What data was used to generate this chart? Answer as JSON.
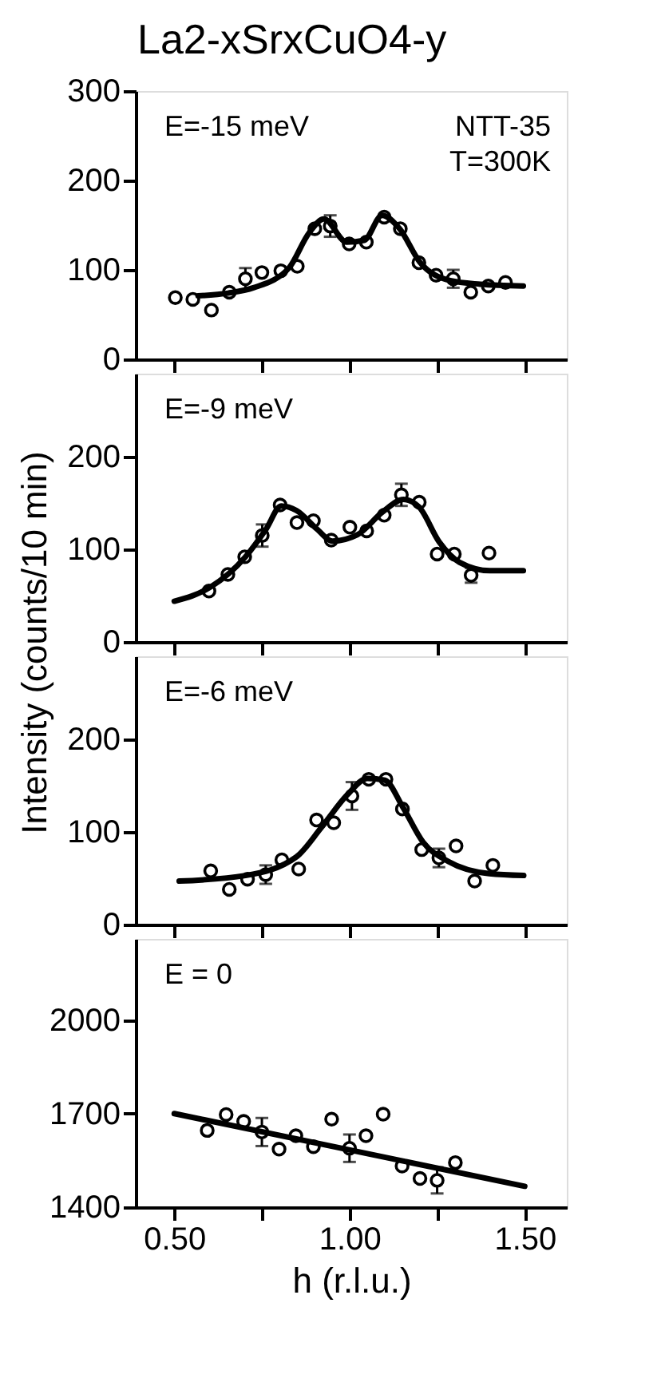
{
  "chart_data": [
    {
      "type": "scatter",
      "title": "La2-xSrxCuO4-y",
      "annotations": [
        "E=-15 meV",
        "NTT-35",
        "T=300K"
      ],
      "xlim": [
        0.39,
        1.62
      ],
      "ylim": [
        0,
        300
      ],
      "yticks": [
        0,
        100,
        200,
        300
      ],
      "xticks": [
        0.5,
        0.75,
        1.0,
        1.25,
        1.5
      ],
      "tick_labels": "y",
      "series": [
        {
          "marker": "circle",
          "color": "#000000",
          "x": [
            0.503,
            0.553,
            0.606,
            0.657,
            0.703,
            0.75,
            0.804,
            0.851,
            0.901,
            0.945,
            0.999,
            1.048,
            1.099,
            1.145,
            1.198,
            1.247,
            1.296,
            1.346,
            1.396,
            1.445
          ],
          "values": [
            69,
            67,
            55,
            75,
            90,
            97,
            99,
            104,
            146,
            149,
            129,
            131,
            159,
            146,
            108,
            94,
            90,
            75,
            82,
            86
          ],
          "errors": [
            null,
            null,
            null,
            null,
            12,
            null,
            null,
            null,
            null,
            12,
            null,
            null,
            null,
            null,
            null,
            null,
            10,
            null,
            null,
            null
          ]
        },
        {
          "type": "line",
          "line_style": "solid",
          "color": "#000000",
          "x": [
            0.568,
            0.654,
            0.726,
            0.827,
            0.884,
            0.927,
            0.992,
            1.042,
            1.093,
            1.143,
            1.2,
            1.287,
            1.373,
            1.496
          ],
          "values": [
            71,
            74,
            80,
            102,
            141,
            157,
            131,
            133,
            161,
            146,
            109,
            88,
            84,
            82
          ]
        }
      ]
    },
    {
      "type": "scatter",
      "ylabel": "Intensity (counts/10 min)",
      "annotations": [
        "E=-9 meV"
      ],
      "xlim": [
        0.39,
        1.62
      ],
      "ylim": [
        0,
        290
      ],
      "yticks": [
        0,
        100,
        200
      ],
      "xticks": [
        0.5,
        0.75,
        1.0,
        1.25,
        1.5
      ],
      "tick_labels": "y",
      "series": [
        {
          "marker": "circle",
          "color": "#000000",
          "x": [
            0.599,
            0.653,
            0.701,
            0.751,
            0.802,
            0.85,
            0.897,
            0.948,
            1.001,
            1.049,
            1.099,
            1.148,
            1.199,
            1.25,
            1.299,
            1.347,
            1.398
          ],
          "values": [
            55,
            73,
            92,
            115,
            148,
            129,
            131,
            110,
            124,
            120,
            137,
            159,
            151,
            95,
            95,
            72,
            96
          ],
          "errors": [
            null,
            null,
            null,
            12,
            null,
            null,
            null,
            null,
            null,
            null,
            null,
            12,
            null,
            null,
            null,
            8,
            null
          ]
        },
        {
          "type": "line",
          "line_style": "solid",
          "color": "#000000",
          "x": [
            0.5,
            0.602,
            0.703,
            0.762,
            0.805,
            0.849,
            0.907,
            0.951,
            1.023,
            1.096,
            1.154,
            1.198,
            1.256,
            1.314,
            1.401,
            1.496
          ],
          "values": [
            44,
            59,
            92,
            122,
            147,
            142,
            122,
            109,
            116,
            141,
            154,
            146,
            108,
            86,
            77,
            77
          ]
        }
      ]
    },
    {
      "type": "scatter",
      "annotations": [
        "E=-6 meV"
      ],
      "xlim": [
        0.39,
        1.62
      ],
      "ylim": [
        0,
        290
      ],
      "yticks": [
        0,
        100,
        200
      ],
      "xticks": [
        0.5,
        0.75,
        1.0,
        1.25,
        1.5
      ],
      "tick_labels": "y",
      "series": [
        {
          "marker": "circle",
          "color": "#000000",
          "x": [
            0.604,
            0.657,
            0.709,
            0.761,
            0.807,
            0.855,
            0.906,
            0.955,
            1.007,
            1.055,
            1.104,
            1.151,
            1.206,
            1.255,
            1.304,
            1.357,
            1.409
          ],
          "values": [
            58,
            38,
            49,
            54,
            70,
            60,
            113,
            110,
            139,
            157,
            157,
            125,
            81,
            72,
            85,
            47,
            64
          ],
          "errors": [
            null,
            null,
            null,
            10,
            null,
            null,
            null,
            null,
            15,
            null,
            null,
            null,
            null,
            10,
            null,
            null,
            null
          ]
        },
        {
          "type": "line",
          "line_style": "solid",
          "color": "#000000",
          "x": [
            0.514,
            0.703,
            0.848,
            0.92,
            0.993,
            1.051,
            1.101,
            1.152,
            1.21,
            1.283,
            1.399,
            1.497
          ],
          "values": [
            47,
            53,
            73,
            105,
            140,
            158,
            156,
            127,
            89,
            68,
            55,
            53
          ]
        }
      ]
    },
    {
      "type": "scatter",
      "xlabel": "h (r.l.u.)",
      "annotations": [
        "E = 0"
      ],
      "xlim": [
        0.39,
        1.62
      ],
      "ylim": [
        1400,
        2260
      ],
      "yticks": [
        1400,
        1700,
        2000
      ],
      "xticks": [
        {
          "value": 0.5,
          "label": "0.50"
        },
        {
          "value": 0.75,
          "label": null
        },
        {
          "value": 1.0,
          "label": "1.00"
        },
        {
          "value": 1.25,
          "label": null
        },
        {
          "value": 1.5,
          "label": "1.50"
        }
      ],
      "series": [
        {
          "marker": "circle",
          "color": "#000000",
          "x": [
            0.594,
            0.648,
            0.698,
            0.75,
            0.799,
            0.847,
            0.897,
            0.949,
            1.0,
            1.047,
            1.096,
            1.15,
            1.201,
            1.25,
            1.302
          ],
          "values": [
            1646,
            1697,
            1675,
            1641,
            1586,
            1629,
            1594,
            1682,
            1589,
            1629,
            1698,
            1532,
            1492,
            1486,
            1543
          ],
          "errors": [
            null,
            null,
            null,
            45,
            null,
            null,
            null,
            null,
            44,
            null,
            null,
            null,
            null,
            42,
            null
          ]
        },
        {
          "type": "line",
          "line_style": "solid",
          "color": "#000000",
          "x": [
            0.5,
            1.5
          ],
          "values": [
            1700,
            1467
          ]
        }
      ]
    }
  ]
}
